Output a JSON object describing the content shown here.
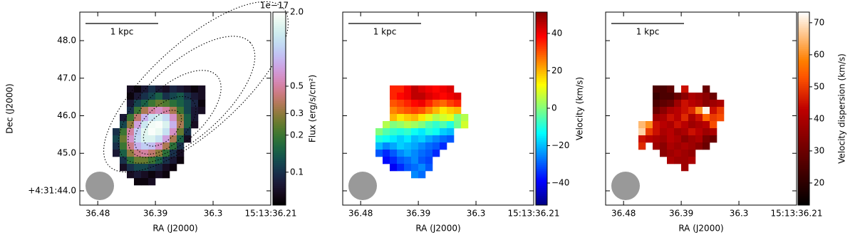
{
  "chart_data": [
    {
      "type": "heatmap",
      "xlabel": "RA (J2000)",
      "ylabel": "Dec (J2000)",
      "xlim": [
        36.508,
        36.21
      ],
      "xticks": [
        36.48,
        36.39,
        36.3,
        {
          "value": 36.21,
          "label": "15:13:36.21"
        }
      ],
      "ylim": [
        43.62,
        48.76
      ],
      "yticks": [
        {
          "value": 48,
          "label": "48.0"
        },
        {
          "value": 47,
          "label": "47.0"
        },
        {
          "value": 46,
          "label": "46.0"
        },
        {
          "value": 45,
          "label": "45.0"
        },
        {
          "value": 44,
          "label": "+4:31:44.0"
        }
      ],
      "show_ytick_labels": true,
      "scalebar": "1 kpc",
      "contours": true,
      "colorbar": {
        "label": "Flux (erg/s/cm²)",
        "offset_text": "1e−17",
        "log": true,
        "colormap": "cubehelix",
        "lim": [
          0.054,
          2.0
        ],
        "ticks": [
          {
            "value": 2,
            "label": "2.0"
          },
          0.5,
          0.3,
          0.2,
          0.1
        ]
      },
      "z": [
        [
          null,
          null,
          0.07,
          0.06,
          0.08,
          0.1,
          0.08,
          0.07,
          0.09,
          0.08,
          0.07,
          0.06,
          0.07,
          null
        ],
        [
          null,
          null,
          0.06,
          0.08,
          0.1,
          0.12,
          0.15,
          0.1,
          0.12,
          0.14,
          0.1,
          0.08,
          0.07,
          null
        ],
        [
          null,
          null,
          0.08,
          0.12,
          0.15,
          0.2,
          0.25,
          0.22,
          0.18,
          0.15,
          0.12,
          0.09,
          0.06,
          null
        ],
        [
          null,
          null,
          0.1,
          0.2,
          0.35,
          0.5,
          0.6,
          0.5,
          0.35,
          0.2,
          0.12,
          0.08,
          0.07,
          null
        ],
        [
          null,
          0.08,
          0.2,
          0.4,
          0.8,
          1.2,
          1.4,
          1.1,
          0.6,
          0.3,
          0.15,
          0.08,
          null,
          null
        ],
        [
          null,
          0.12,
          0.3,
          0.7,
          1.3,
          1.8,
          1.9,
          1.5,
          0.8,
          0.35,
          0.15,
          0.07,
          null,
          null
        ],
        [
          0.1,
          0.2,
          0.5,
          1.0,
          1.6,
          1.9,
          1.7,
          1.2,
          0.6,
          0.25,
          0.1,
          null,
          null,
          null
        ],
        [
          0.12,
          0.25,
          0.6,
          1.1,
          1.5,
          1.5,
          1.2,
          0.7,
          0.35,
          0.15,
          0.07,
          null,
          null,
          null
        ],
        [
          0.1,
          0.2,
          0.45,
          0.8,
          1.0,
          0.9,
          0.6,
          0.35,
          0.18,
          0.1,
          null,
          null,
          null,
          null
        ],
        [
          0.08,
          0.15,
          0.3,
          0.45,
          0.5,
          0.4,
          0.3,
          0.18,
          0.1,
          0.07,
          null,
          null,
          null,
          null
        ],
        [
          null,
          0.1,
          0.18,
          0.25,
          0.25,
          0.2,
          0.15,
          0.1,
          0.08,
          0.06,
          null,
          null,
          null,
          null
        ],
        [
          null,
          0.07,
          0.1,
          0.12,
          0.12,
          0.1,
          0.09,
          0.07,
          0.06,
          null,
          null,
          null,
          null,
          null
        ],
        [
          null,
          null,
          0.07,
          0.08,
          0.07,
          0.06,
          0.07,
          0.06,
          null,
          null,
          null,
          null,
          null,
          null
        ],
        [
          null,
          null,
          null,
          0.06,
          0.06,
          0.07,
          null,
          null,
          null,
          null,
          null,
          null,
          null,
          null
        ]
      ]
    },
    {
      "type": "heatmap",
      "xlabel": "RA (J2000)",
      "xlim": [
        36.508,
        36.21
      ],
      "xticks": [
        36.48,
        36.39,
        36.3,
        {
          "value": 36.21,
          "label": "15:13:36.21"
        }
      ],
      "ylim": [
        43.62,
        48.76
      ],
      "yticks": [
        48,
        47,
        46,
        45,
        44
      ],
      "show_ytick_labels": false,
      "scalebar": "1 kpc",
      "colorbar": {
        "label": "Velocity (km/s)",
        "log": false,
        "colormap": "jet",
        "lim": [
          -51.8,
          51.4
        ],
        "ticks": [
          40,
          20,
          0,
          {
            "value": -20,
            "label": "−20"
          },
          {
            "value": -40,
            "label": "−40"
          }
        ]
      },
      "z": [
        [
          null,
          null,
          35,
          35,
          40,
          45,
          42,
          40,
          38,
          40,
          42,
          null,
          null,
          null
        ],
        [
          null,
          null,
          35,
          38,
          40,
          45,
          45,
          42,
          40,
          38,
          40,
          42,
          null,
          null
        ],
        [
          null,
          null,
          30,
          32,
          35,
          38,
          40,
          35,
          30,
          28,
          32,
          35,
          null,
          null
        ],
        [
          null,
          null,
          25,
          28,
          30,
          32,
          30,
          25,
          20,
          15,
          18,
          20,
          null,
          null
        ],
        [
          null,
          null,
          20,
          15,
          18,
          20,
          15,
          10,
          5,
          8,
          10,
          0,
          5,
          null
        ],
        [
          null,
          5,
          0,
          2,
          5,
          3,
          0,
          -5,
          -8,
          -5,
          -10,
          -2,
          8,
          null
        ],
        [
          0,
          -5,
          -8,
          -10,
          -8,
          -12,
          -15,
          -10,
          -12,
          -18,
          -20,
          null,
          null,
          null
        ],
        [
          -10,
          -12,
          -15,
          -18,
          -15,
          -20,
          -18,
          -22,
          -25,
          -28,
          -30,
          null,
          null,
          null
        ],
        [
          -20,
          -25,
          -22,
          -18,
          -20,
          -22,
          -25,
          -28,
          -30,
          -35,
          null,
          null,
          null,
          null
        ],
        [
          -30,
          -35,
          -30,
          -25,
          -22,
          -25,
          -28,
          -30,
          -35,
          null,
          null,
          null,
          null,
          null
        ],
        [
          null,
          -38,
          -35,
          -30,
          -28,
          -25,
          -30,
          -32,
          null,
          null,
          null,
          null,
          null,
          null
        ],
        [
          null,
          null,
          -40,
          -35,
          -30,
          -28,
          -25,
          -30,
          null,
          null,
          null,
          null,
          null,
          null
        ],
        [
          null,
          null,
          null,
          null,
          null,
          -25,
          -28,
          null,
          null,
          null,
          null,
          null,
          null,
          null
        ]
      ]
    },
    {
      "type": "heatmap",
      "xlabel": "RA (J2000)",
      "xlim": [
        36.508,
        36.21
      ],
      "xticks": [
        36.48,
        36.39,
        36.3,
        {
          "value": 36.21,
          "label": "15:13:36.21"
        }
      ],
      "ylim": [
        43.62,
        48.76
      ],
      "yticks": [
        48,
        47,
        46,
        45,
        44
      ],
      "show_ytick_labels": false,
      "scalebar": "1 kpc",
      "colorbar": {
        "label": "Velocity dispersion (km/s)",
        "log": false,
        "colormap": "gist_heat",
        "lim": [
          13.1,
          73.3
        ],
        "ticks": [
          70,
          60,
          50,
          40,
          30,
          20
        ]
      },
      "z": [
        [
          null,
          null,
          25,
          25,
          28,
          null,
          45,
          null,
          null,
          30,
          null,
          null,
          null,
          null
        ],
        [
          null,
          null,
          22,
          25,
          25,
          30,
          35,
          40,
          38,
          35,
          30,
          null,
          null,
          null
        ],
        [
          null,
          null,
          25,
          28,
          30,
          38,
          45,
          42,
          40,
          35,
          38,
          40,
          null,
          null
        ],
        [
          null,
          null,
          30,
          35,
          40,
          42,
          45,
          48,
          60,
          72,
          45,
          50,
          null,
          null
        ],
        [
          null,
          null,
          38,
          40,
          45,
          42,
          48,
          40,
          45,
          55,
          50,
          52,
          null,
          null
        ],
        [
          65,
          60,
          45,
          42,
          40,
          45,
          42,
          38,
          40,
          42,
          52,
          null,
          null,
          null
        ],
        [
          68,
          50,
          45,
          40,
          42,
          38,
          40,
          45,
          42,
          38,
          40,
          null,
          null,
          null
        ],
        [
          45,
          42,
          40,
          38,
          42,
          40,
          35,
          38,
          40,
          32,
          30,
          null,
          null,
          null
        ],
        [
          48,
          null,
          38,
          35,
          40,
          38,
          40,
          38,
          35,
          30,
          null,
          null,
          null,
          null
        ],
        [
          null,
          null,
          null,
          35,
          38,
          40,
          38,
          36,
          null,
          null,
          null,
          null,
          null,
          null
        ],
        [
          null,
          null,
          null,
          null,
          40,
          38,
          38,
          40,
          null,
          null,
          null,
          null,
          null,
          null
        ],
        [
          null,
          null,
          null,
          null,
          null,
          null,
          38,
          null,
          null,
          null,
          null,
          null,
          null,
          null
        ]
      ]
    }
  ]
}
